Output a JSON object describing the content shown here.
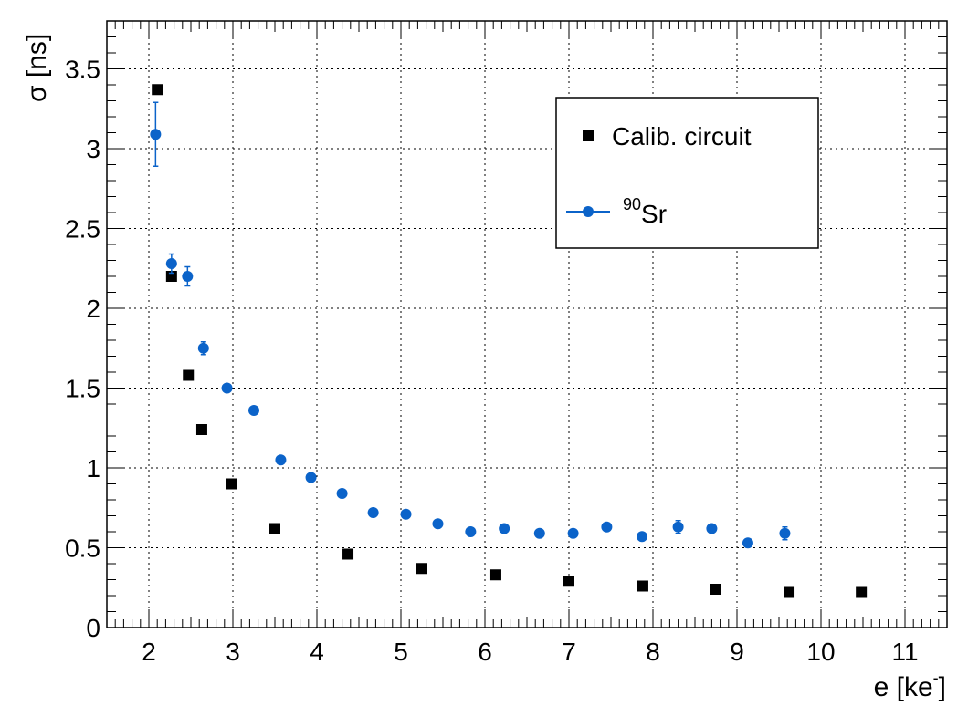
{
  "chart_data": {
    "type": "scatter",
    "xlabel_main": "e [ke",
    "xlabel_sup": "-",
    "xlabel_end": "]",
    "ylabel": "σ [ns]",
    "xlim": [
      1.5,
      11.5
    ],
    "ylim": [
      0,
      3.8
    ],
    "grid": true,
    "legend_position": "top-right",
    "x_ticks": [
      2,
      3,
      4,
      5,
      6,
      7,
      8,
      9,
      10,
      11
    ],
    "x_tick_labels": [
      "2",
      "3",
      "4",
      "5",
      "6",
      "7",
      "8",
      "9",
      "10",
      "11"
    ],
    "y_ticks": [
      0,
      0.5,
      1,
      1.5,
      2,
      2.5,
      3,
      3.5
    ],
    "y_tick_labels": [
      "0",
      "0.5",
      "1",
      "1.5",
      "2",
      "2.5",
      "3",
      "3.5"
    ],
    "series": [
      {
        "name": "Calib. circuit",
        "marker": "square",
        "color": "#000000",
        "x": [
          2.1,
          2.27,
          2.47,
          2.63,
          2.98,
          3.5,
          4.37,
          5.25,
          6.13,
          7.0,
          7.88,
          8.75,
          9.62,
          10.48
        ],
        "y": [
          3.37,
          2.2,
          1.58,
          1.24,
          0.9,
          0.62,
          0.46,
          0.37,
          0.33,
          0.29,
          0.26,
          0.24,
          0.22,
          0.22
        ]
      },
      {
        "name_sup": "90",
        "name": "Sr",
        "marker": "circle",
        "color": "#0b63c9",
        "x": [
          2.08,
          2.27,
          2.46,
          2.65,
          2.93,
          3.25,
          3.57,
          3.93,
          4.3,
          4.67,
          5.06,
          5.44,
          5.83,
          6.23,
          6.65,
          7.05,
          7.45,
          7.87,
          8.3,
          8.7,
          9.13,
          9.57
        ],
        "y": [
          3.09,
          2.28,
          2.2,
          1.75,
          1.5,
          1.36,
          1.05,
          0.94,
          0.84,
          0.72,
          0.71,
          0.65,
          0.6,
          0.62,
          0.59,
          0.59,
          0.63,
          0.57,
          0.63,
          0.62,
          0.53,
          0.59
        ],
        "yerr": [
          0.2,
          0.06,
          0.06,
          0.04,
          0.01,
          0.01,
          0.01,
          0.01,
          0.01,
          0.01,
          0.01,
          0.01,
          0.01,
          0.01,
          0.01,
          0.01,
          0.01,
          0.01,
          0.04,
          0.01,
          0.01,
          0.04
        ]
      }
    ]
  }
}
